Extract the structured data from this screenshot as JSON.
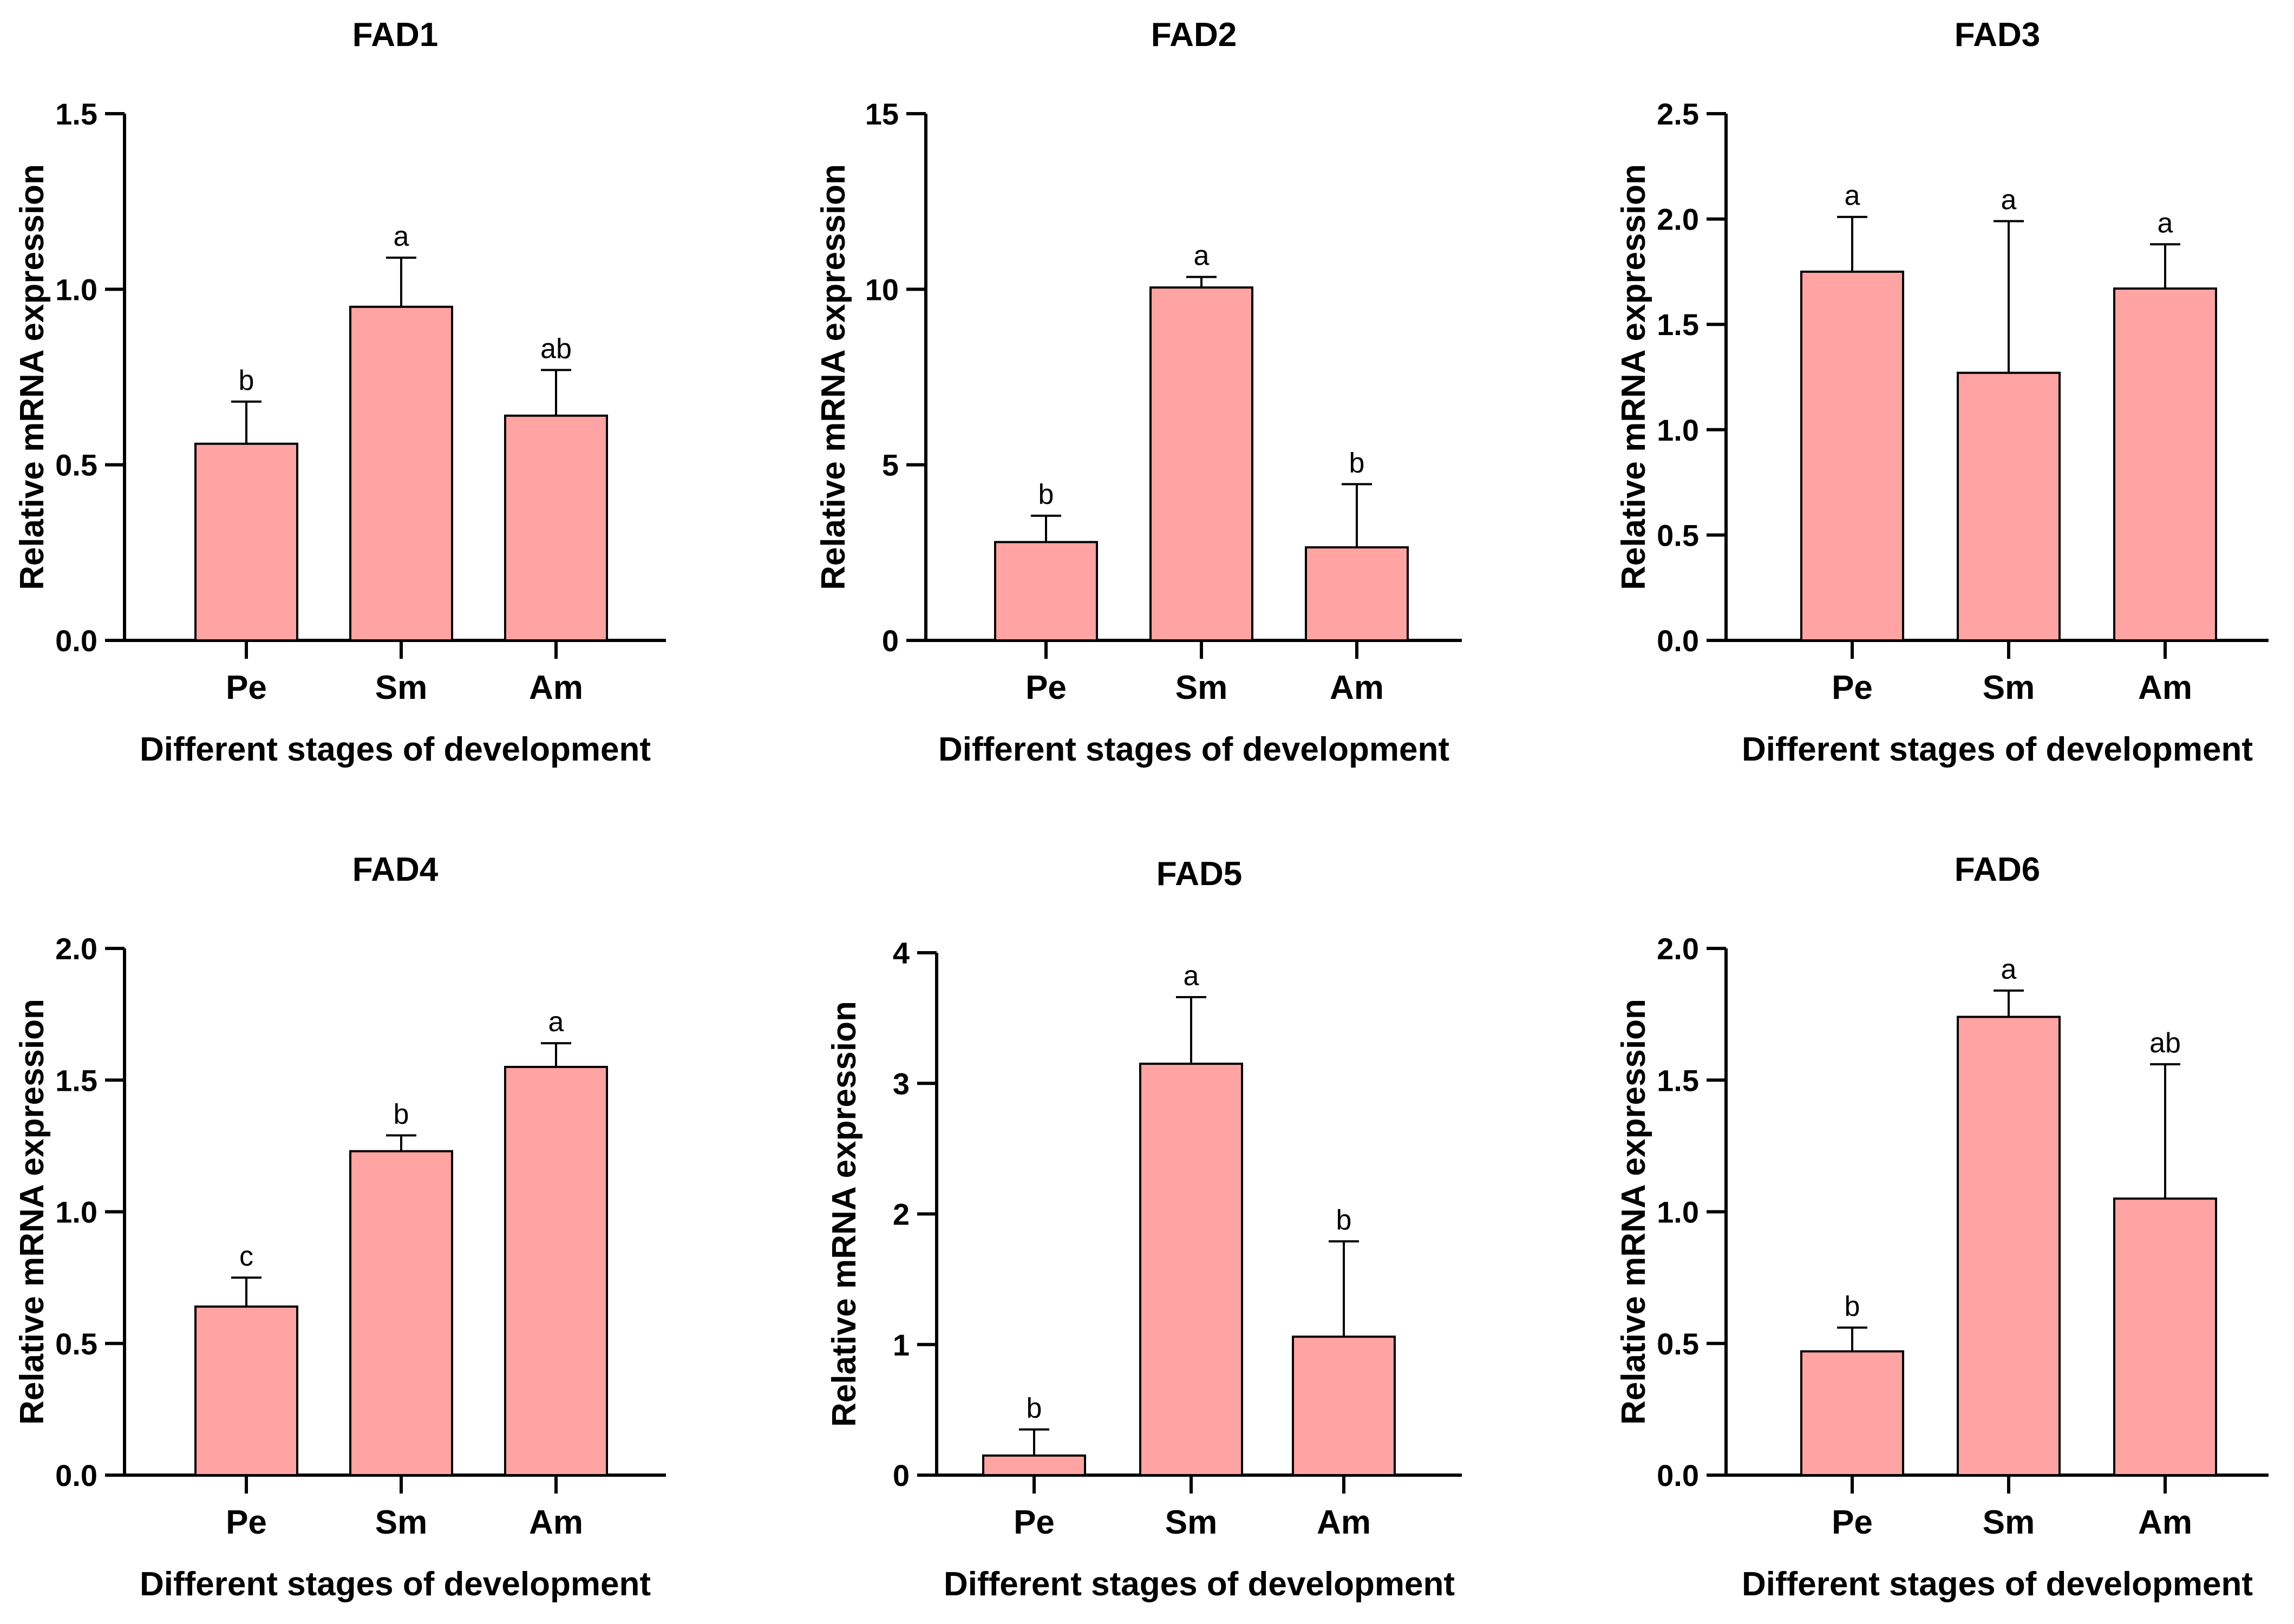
{
  "figure": {
    "bar_color": "#ffa3a3",
    "stroke_color": "#000000"
  },
  "chart_data": [
    {
      "type": "bar",
      "title": "FAD1",
      "xlabel": "Different stages of development",
      "ylabel": "Relative mRNA expression",
      "categories": [
        "Pe",
        "Sm",
        "Am"
      ],
      "values": [
        0.56,
        0.95,
        0.64
      ],
      "errors": [
        0.12,
        0.14,
        0.13
      ],
      "significance": [
        "b",
        "a",
        "ab"
      ],
      "ylim": [
        0,
        1.5
      ],
      "yticks": [
        0,
        0.5,
        1.0,
        1.5
      ],
      "ytick_labels": [
        "0.0",
        "0.5",
        "1.0",
        "1.5"
      ]
    },
    {
      "type": "bar",
      "title": "FAD2",
      "xlabel": "Different stages of development",
      "ylabel": "Relative mRNA expression",
      "categories": [
        "Pe",
        "Sm",
        "Am"
      ],
      "values": [
        2.8,
        10.05,
        2.65
      ],
      "errors": [
        0.75,
        0.3,
        1.8
      ],
      "significance": [
        "b",
        "a",
        "b"
      ],
      "ylim": [
        0,
        15
      ],
      "yticks": [
        0,
        5,
        10,
        15
      ],
      "ytick_labels": [
        "0",
        "5",
        "10",
        "15"
      ]
    },
    {
      "type": "bar",
      "title": "FAD3",
      "xlabel": "Different stages of development",
      "ylabel": "Relative mRNA expression",
      "categories": [
        "Pe",
        "Sm",
        "Am"
      ],
      "values": [
        1.75,
        1.27,
        1.67
      ],
      "errors": [
        0.26,
        0.72,
        0.21
      ],
      "significance": [
        "a",
        "a",
        "a"
      ],
      "ylim": [
        0,
        2.5
      ],
      "yticks": [
        0,
        0.5,
        1.0,
        1.5,
        2.0,
        2.5
      ],
      "ytick_labels": [
        "0.0",
        "0.5",
        "1.0",
        "1.5",
        "2.0",
        "2.5"
      ]
    },
    {
      "type": "bar",
      "title": "FAD4",
      "xlabel": "Different stages of development",
      "ylabel": "Relative mRNA expression",
      "categories": [
        "Pe",
        "Sm",
        "Am"
      ],
      "values": [
        0.64,
        1.23,
        1.55
      ],
      "errors": [
        0.11,
        0.06,
        0.09
      ],
      "significance": [
        "c",
        "b",
        "a"
      ],
      "ylim": [
        0,
        2.0
      ],
      "yticks": [
        0,
        0.5,
        1.0,
        1.5,
        2.0
      ],
      "ytick_labels": [
        "0.0",
        "0.5",
        "1.0",
        "1.5",
        "2.0"
      ]
    },
    {
      "type": "bar",
      "title": "FAD5",
      "xlabel": "Different stages of development",
      "ylabel": "Relative mRNA expression",
      "categories": [
        "Pe",
        "Sm",
        "Am"
      ],
      "values": [
        0.15,
        3.15,
        1.06
      ],
      "errors": [
        0.2,
        0.51,
        0.73
      ],
      "significance": [
        "b",
        "a",
        "b"
      ],
      "ylim": [
        0,
        4
      ],
      "yticks": [
        0,
        1,
        2,
        3,
        4
      ],
      "ytick_labels": [
        "0",
        "1",
        "2",
        "3",
        "4"
      ]
    },
    {
      "type": "bar",
      "title": "FAD6",
      "xlabel": "Different stages of development",
      "ylabel": "Relative mRNA expression",
      "categories": [
        "Pe",
        "Sm",
        "Am"
      ],
      "values": [
        0.47,
        1.74,
        1.05
      ],
      "errors": [
        0.09,
        0.1,
        0.51
      ],
      "significance": [
        "b",
        "a",
        "ab"
      ],
      "ylim": [
        0,
        2.0
      ],
      "yticks": [
        0,
        0.5,
        1.0,
        1.5,
        2.0
      ],
      "ytick_labels": [
        "0.0",
        "0.5",
        "1.0",
        "1.5",
        "2.0"
      ]
    }
  ]
}
